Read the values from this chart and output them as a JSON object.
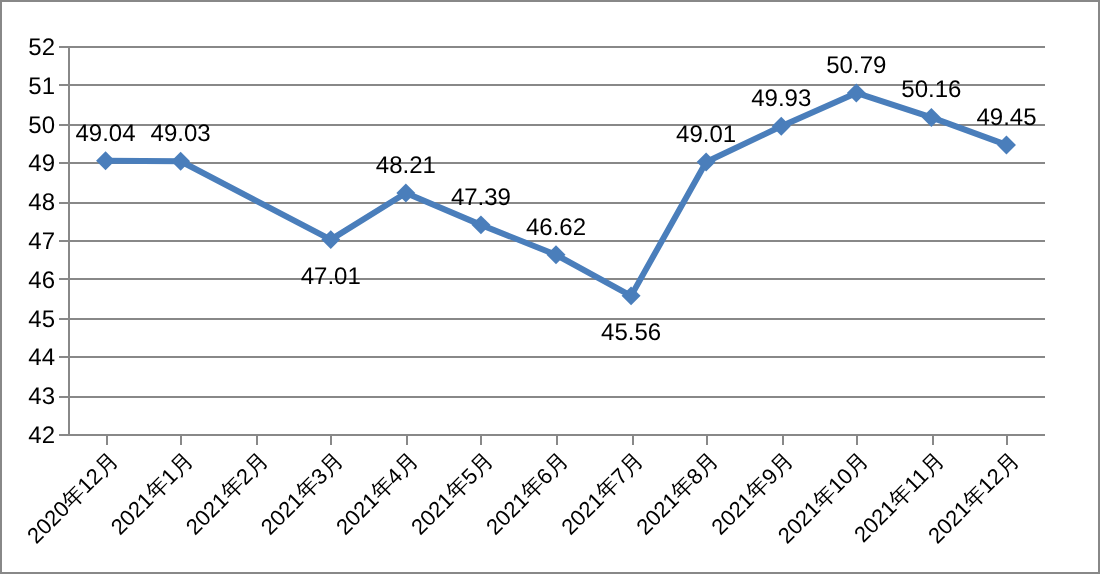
{
  "chart_data": {
    "type": "line",
    "categories": [
      "2020年12月",
      "2021年1月",
      "2021年2月",
      "2021年3月",
      "2021年4月",
      "2021年5月",
      "2021年6月",
      "2021年7月",
      "2021年8月",
      "2021年9月",
      "2021年10月",
      "2021年11月",
      "2021年12月"
    ],
    "series": [
      {
        "color": "#4a7ebb",
        "values": [
          49.04,
          49.03,
          null,
          47.01,
          48.21,
          47.39,
          46.62,
          45.56,
          49.01,
          49.93,
          50.79,
          50.16,
          49.45
        ]
      }
    ],
    "ylim": [
      42,
      52
    ],
    "yticks": [
      42,
      43,
      44,
      45,
      46,
      47,
      48,
      49,
      50,
      51,
      52
    ],
    "grid": "y",
    "marker": "diamond",
    "data_labels": true
  }
}
